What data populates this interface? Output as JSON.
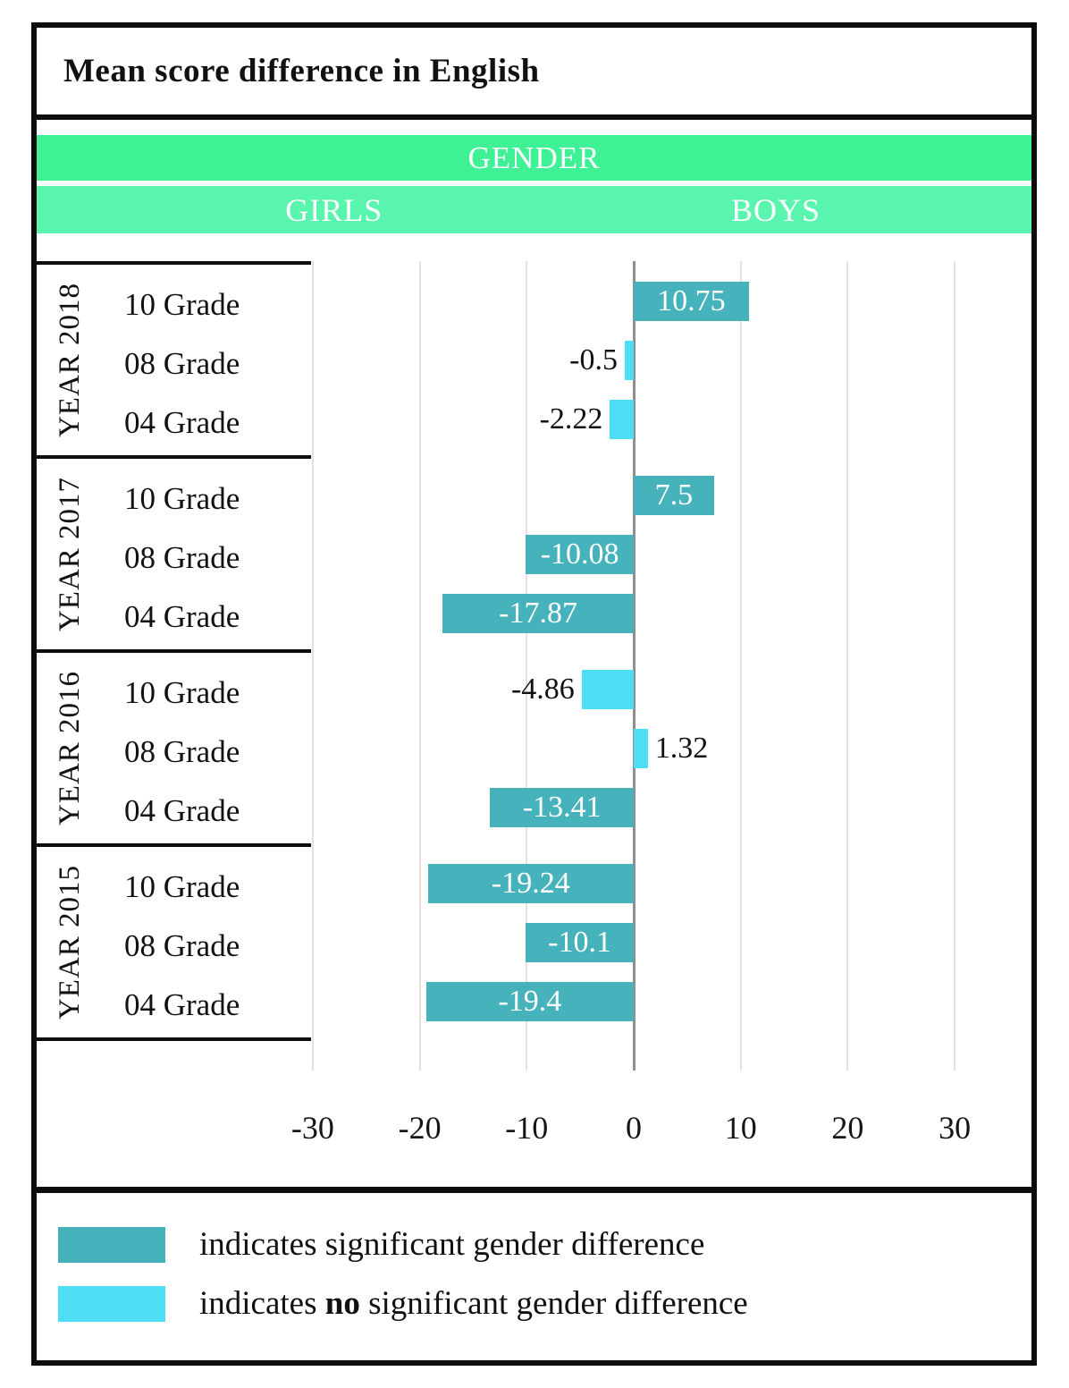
{
  "title": "Mean score difference in English",
  "header": {
    "group": "GENDER",
    "girls": "GIRLS",
    "boys": "BOYS"
  },
  "colors": {
    "significant": "#45b2bc",
    "not_significant": "#4ddef5",
    "header_top": "#3df194",
    "header_bottom": "#59f5af"
  },
  "chart_data": {
    "type": "bar",
    "orientation": "horizontal",
    "title": "Mean score difference in English",
    "xlabel": "",
    "ylabel": "",
    "xlim": [
      -30,
      30
    ],
    "x_ticks": [
      -30,
      -20,
      -10,
      0,
      10,
      20,
      30
    ],
    "grid": true,
    "groups": [
      {
        "year": "YEAR 2018",
        "rows": [
          {
            "grade": "10 Grade",
            "value": 10.75,
            "label": "10.75",
            "significant": true
          },
          {
            "grade": "08 Grade",
            "value": -0.5,
            "label": "-0.5",
            "significant": false
          },
          {
            "grade": "04 Grade",
            "value": -2.22,
            "label": "-2.22",
            "significant": false
          }
        ]
      },
      {
        "year": "YEAR 2017",
        "rows": [
          {
            "grade": "10 Grade",
            "value": 7.5,
            "label": "7.5",
            "significant": true
          },
          {
            "grade": "08 Grade",
            "value": -10.08,
            "label": "-10.08",
            "significant": true
          },
          {
            "grade": "04 Grade",
            "value": -17.87,
            "label": "-17.87",
            "significant": true
          }
        ]
      },
      {
        "year": "YEAR 2016",
        "rows": [
          {
            "grade": "10 Grade",
            "value": -4.86,
            "label": "-4.86",
            "significant": false
          },
          {
            "grade": "08 Grade",
            "value": 1.32,
            "label": "1.32",
            "significant": false
          },
          {
            "grade": "04 Grade",
            "value": -13.41,
            "label": "-13.41",
            "significant": true
          }
        ]
      },
      {
        "year": "YEAR 2015",
        "rows": [
          {
            "grade": "10 Grade",
            "value": -19.24,
            "label": "-19.24",
            "significant": true
          },
          {
            "grade": "08 Grade",
            "value": -10.1,
            "label": "-10.1",
            "significant": true
          },
          {
            "grade": "04 Grade",
            "value": -19.4,
            "label": "-19.4",
            "significant": true
          }
        ]
      }
    ]
  },
  "legend": {
    "significant": {
      "text": "indicates significant gender difference"
    },
    "not_significant": {
      "before": "indicates ",
      "bold": "no",
      "after": " significant gender difference"
    }
  }
}
